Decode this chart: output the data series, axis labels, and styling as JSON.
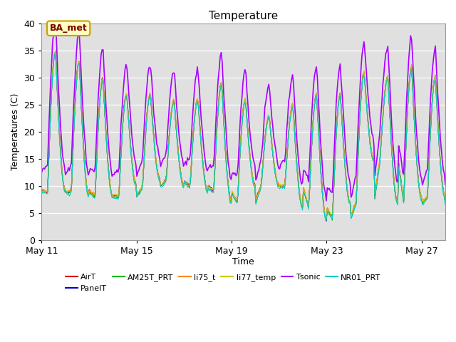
{
  "title": "Temperature",
  "ylabel": "Temperatures (C)",
  "xlabel": "Time",
  "ylim": [
    0,
    40
  ],
  "yticks": [
    0,
    5,
    10,
    15,
    20,
    25,
    30,
    35,
    40
  ],
  "background_color": "#ffffff",
  "plot_bg_color": "#e0e0e0",
  "annotation_text": "BA_met",
  "annotation_bg": "#ffffc0",
  "annotation_border": "#c8a000",
  "annotation_text_color": "#800000",
  "series": {
    "AirT": {
      "color": "#cc0000",
      "lw": 0.8
    },
    "PanelT": {
      "color": "#0000cc",
      "lw": 0.8
    },
    "AM25T_PRT": {
      "color": "#00bb00",
      "lw": 0.8
    },
    "li75_t": {
      "color": "#ff8800",
      "lw": 0.8
    },
    "li77_temp": {
      "color": "#cccc00",
      "lw": 0.8
    },
    "Tsonic": {
      "color": "#aa00ff",
      "lw": 1.2
    },
    "NR01_PRT": {
      "color": "#00cccc",
      "lw": 0.8
    }
  },
  "legend_order": [
    "AirT",
    "PanelT",
    "AM25T_PRT",
    "li75_t",
    "li77_temp",
    "Tsonic",
    "NR01_PRT"
  ],
  "xticklabels": [
    "May 11",
    "May 15",
    "May 19",
    "May 23",
    "May 27"
  ],
  "xtick_days": [
    0,
    4,
    8,
    12,
    16
  ]
}
